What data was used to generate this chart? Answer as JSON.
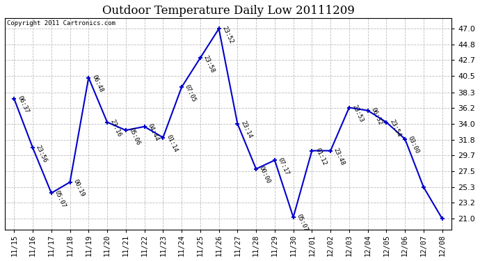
{
  "title": "Outdoor Temperature Daily Low 20111209",
  "copyright": "Copyright 2011 Cartronics.com",
  "x_labels": [
    "11/15",
    "11/16",
    "11/17",
    "11/18",
    "11/19",
    "11/20",
    "11/21",
    "11/22",
    "11/23",
    "11/24",
    "11/25",
    "11/26",
    "11/27",
    "11/28",
    "11/29",
    "11/30",
    "12/01",
    "12/02",
    "12/03",
    "12/04",
    "12/05",
    "12/06",
    "12/07",
    "12/08"
  ],
  "y_values": [
    37.4,
    30.7,
    24.5,
    26.0,
    40.3,
    34.2,
    33.1,
    33.6,
    32.1,
    39.0,
    43.0,
    47.0,
    34.0,
    27.8,
    29.0,
    21.2,
    30.3,
    30.3,
    36.2,
    35.8,
    34.2,
    31.9,
    25.3,
    21.0
  ],
  "time_labels": [
    "06:37",
    "23:56",
    "05:07",
    "00:19",
    "06:48",
    "23:16",
    "05:06",
    "04:44",
    "01:14",
    "07:05",
    "23:58",
    "23:52",
    "23:14",
    "00:00",
    "07:17",
    "05:07",
    "01:12",
    "23:48",
    "23:53",
    "06:32",
    "23:54",
    "03:00",
    "",
    ""
  ],
  "y_ticks": [
    21.0,
    23.2,
    25.3,
    27.5,
    29.7,
    31.8,
    34.0,
    36.2,
    38.3,
    40.5,
    42.7,
    44.8,
    47.0
  ],
  "ylim": [
    19.5,
    48.5
  ],
  "xlim": [
    -0.5,
    23.5
  ],
  "line_color": "#0000CC",
  "marker_color": "#0000CC",
  "bg_color": "#ffffff",
  "grid_color": "#bbbbbb",
  "title_fontsize": 12,
  "annot_fontsize": 6.5,
  "tick_fontsize": 7.5,
  "ytick_fontsize": 8
}
